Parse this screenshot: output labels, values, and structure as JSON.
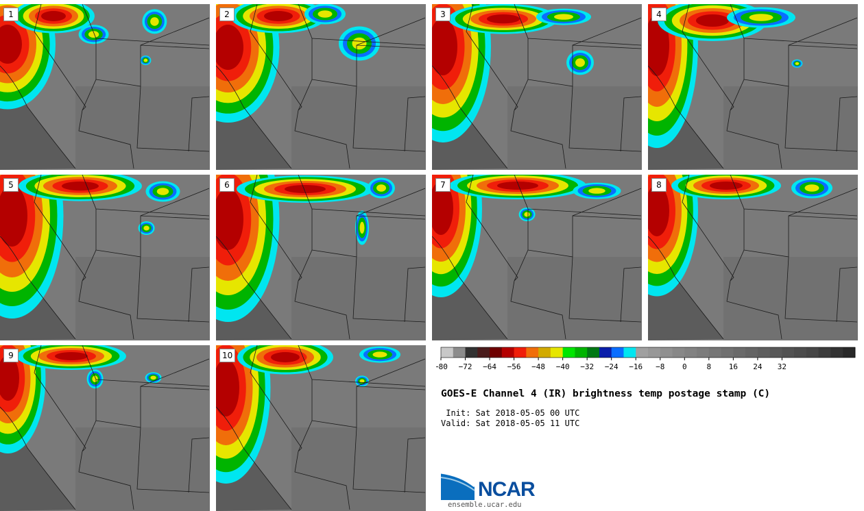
{
  "title": "GOES-E Channel 4 (IR) brightness temp postage stamp (C)",
  "init": " Init: Sat 2018-05-05 00 UTC",
  "valid": "Valid: Sat 2018-05-05 11 UTC",
  "logo": {
    "name": "NCAR",
    "url": "ensemble.ucar.edu"
  },
  "colorbar": {
    "ticks": [
      "−80",
      "−72",
      "−64",
      "−56",
      "−48",
      "−40",
      "−32",
      "−24",
      "−16",
      "−8",
      "0",
      "8",
      "16",
      "24",
      "32"
    ],
    "colors": [
      "#c8c8c8",
      "#8c8c8c",
      "#323232",
      "#4a1c1c",
      "#6e0000",
      "#b40000",
      "#f01e0a",
      "#f06e0a",
      "#d2aa00",
      "#e6e600",
      "#00e600",
      "#00b400",
      "#007814",
      "#0a1eaa",
      "#0a6eff",
      "#00e6f0",
      "#a0a0a0",
      "#989898",
      "#909090",
      "#888888",
      "#828282",
      "#7c7c7c",
      "#767676",
      "#707070",
      "#6a6a6a",
      "#646464",
      "#5e5e5e",
      "#585858",
      "#525252",
      "#4c4c4c",
      "#464646",
      "#3c3c3c",
      "#323232",
      "#282828"
    ]
  },
  "panels": [
    {
      "label": "1"
    },
    {
      "label": "2"
    },
    {
      "label": "3"
    },
    {
      "label": "4"
    },
    {
      "label": "5"
    },
    {
      "label": "6"
    },
    {
      "label": "7"
    },
    {
      "label": "8"
    },
    {
      "label": "9"
    },
    {
      "label": "10"
    }
  ]
}
